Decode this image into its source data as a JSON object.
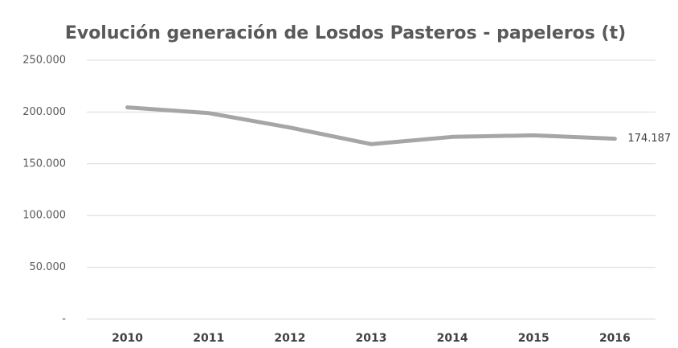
{
  "chart_data": {
    "type": "line",
    "title": "Evolución generación de Losdos Pasteros - papeleros (t)",
    "categories": [
      "2010",
      "2011",
      "2012",
      "2013",
      "2014",
      "2015",
      "2016"
    ],
    "series": [
      {
        "name": "Pasteros - papeleros",
        "color": "#a6a6a6",
        "values": [
          204500,
          199000,
          185000,
          169000,
          176000,
          177500,
          174187
        ],
        "value_labels": [
          null,
          null,
          null,
          null,
          null,
          null,
          "174.187"
        ]
      }
    ],
    "ylim": [
      0,
      250000
    ],
    "yticks": [
      {
        "value": 0,
        "label": "-"
      },
      {
        "value": 50000,
        "label": "50.000"
      },
      {
        "value": 100000,
        "label": "100.000"
      },
      {
        "value": 150000,
        "label": "150.000"
      },
      {
        "value": 200000,
        "label": "200.000"
      },
      {
        "value": 250000,
        "label": "250.000"
      }
    ],
    "grid": true
  }
}
